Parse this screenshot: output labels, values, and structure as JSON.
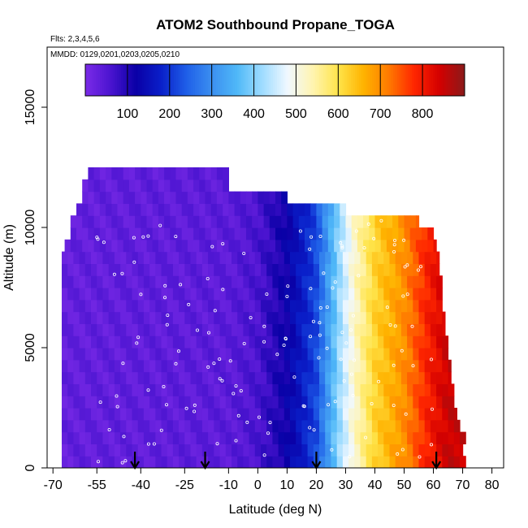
{
  "chart_data": {
    "type": "heatmap",
    "title": "ATOM2 Southbound Propane_TOGA",
    "subtitle_flights": "Flts: 2,3,4,5,6",
    "subtitle_dates": "MMDD: 0129,0201,0203,0205,0210",
    "xlabel": "Latitude (deg N)",
    "ylabel": "Altitude (m)",
    "xlim": [
      -72,
      84
    ],
    "ylim": [
      0,
      17500
    ],
    "x_ticks": [
      -70,
      -55,
      -40,
      -25,
      -10,
      0,
      10,
      20,
      30,
      40,
      50,
      60,
      70,
      80
    ],
    "x_tick_labels": [
      "-70",
      "-55",
      "-40",
      "-25",
      "-10",
      "0",
      "10",
      "20",
      "30",
      "40",
      "50",
      "60",
      "70",
      "80"
    ],
    "y_ticks": [
      0,
      5000,
      10000,
      15000
    ],
    "y_tick_labels": [
      "0",
      "5000",
      "10000",
      "15000"
    ],
    "colorbar": {
      "range": [
        0,
        900
      ],
      "ticks": [
        100,
        200,
        300,
        400,
        500,
        600,
        700,
        800
      ],
      "tick_labels": [
        "100",
        "200",
        "300",
        "400",
        "500",
        "600",
        "700",
        "800"
      ],
      "colors": [
        "#7b2be8",
        "#4b14d0",
        "#0a00a6",
        "#0a1fc9",
        "#1f5fe8",
        "#3b8ff0",
        "#4fb8f8",
        "#9fdcff",
        "#f0f8ff",
        "#fff4b0",
        "#ffe44a",
        "#ffb300",
        "#ff7a00",
        "#ff2600",
        "#d40000",
        "#8b1a1a"
      ]
    },
    "flight_markers_lat": [
      -42,
      -18,
      20,
      61
    ],
    "profile": [
      {
        "alt": [
          0,
          500
        ],
        "max_lat": 71
      },
      {
        "alt": [
          500,
          1000
        ],
        "max_lat": 70
      },
      {
        "alt": [
          1000,
          1500
        ],
        "max_lat": 71
      },
      {
        "alt": [
          1500,
          2000
        ],
        "max_lat": 69
      },
      {
        "alt": [
          2000,
          2500
        ],
        "max_lat": 68
      },
      {
        "alt": [
          2500,
          3000
        ],
        "max_lat": 67
      },
      {
        "alt": [
          3000,
          3500
        ],
        "max_lat": 67
      },
      {
        "alt": [
          3500,
          4000
        ],
        "max_lat": 66
      },
      {
        "alt": [
          4000,
          4500
        ],
        "max_lat": 66
      },
      {
        "alt": [
          4500,
          5000
        ],
        "max_lat": 65
      },
      {
        "alt": [
          5000,
          5500
        ],
        "max_lat": 65
      },
      {
        "alt": [
          5500,
          6000
        ],
        "max_lat": 64
      },
      {
        "alt": [
          6000,
          6500
        ],
        "max_lat": 64
      },
      {
        "alt": [
          6500,
          7000
        ],
        "max_lat": 63
      },
      {
        "alt": [
          7000,
          7500
        ],
        "max_lat": 63
      },
      {
        "alt": [
          7500,
          8000
        ],
        "max_lat": 63
      },
      {
        "alt": [
          8000,
          8500
        ],
        "max_lat": 62
      },
      {
        "alt": [
          8500,
          9000
        ],
        "max_lat": 62
      },
      {
        "alt": [
          9000,
          9500
        ],
        "max_lat": 61
      },
      {
        "alt": [
          9500,
          10000
        ],
        "max_lat": 60
      },
      {
        "alt": [
          10000,
          10500
        ],
        "max_lat": 55
      },
      {
        "alt": [
          10500,
          11000
        ],
        "max_lat": 30
      },
      {
        "alt": [
          11000,
          11500
        ],
        "max_lat": 10
      },
      {
        "alt": [
          11500,
          12000
        ],
        "max_lat": -10
      },
      {
        "alt": [
          12000,
          12500
        ],
        "max_lat": -10
      }
    ],
    "min_lat_by_alt": [
      {
        "alt": [
          0,
          8700
        ],
        "min_lat": -67
      },
      {
        "alt": [
          8700,
          9500
        ],
        "min_lat": -66
      },
      {
        "alt": [
          9500,
          10300
        ],
        "min_lat": -64
      },
      {
        "alt": [
          10300,
          11000
        ],
        "min_lat": -62
      },
      {
        "alt": [
          11000,
          11800
        ],
        "min_lat": -60
      },
      {
        "alt": [
          11800,
          12500
        ],
        "min_lat": -58
      }
    ],
    "gradient_by_lat": [
      {
        "lat": -67,
        "value": 30
      },
      {
        "lat": -10,
        "value": 40
      },
      {
        "lat": 0,
        "value": 60
      },
      {
        "lat": 10,
        "value": 120
      },
      {
        "lat": 20,
        "value": 220
      },
      {
        "lat": 28,
        "value": 420
      },
      {
        "lat": 33,
        "value": 520
      },
      {
        "lat": 40,
        "value": 620
      },
      {
        "lat": 50,
        "value": 700
      },
      {
        "lat": 58,
        "value": 790
      },
      {
        "lat": 65,
        "value": 850
      }
    ],
    "grid": false,
    "legend": "top"
  }
}
